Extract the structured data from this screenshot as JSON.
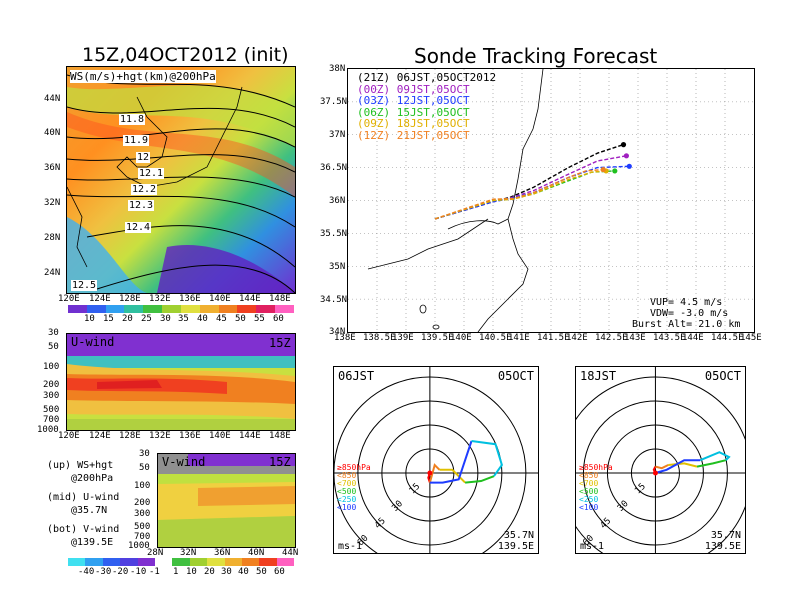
{
  "map_panel": {
    "title": "15Z,04OCT2012 (init)",
    "label": "WS(m/s)+hgt(km)@200hPa",
    "lat_ticks": [
      "44N",
      "40N",
      "36N",
      "32N",
      "28N",
      "24N"
    ],
    "lon_ticks": [
      "120E",
      "124E",
      "128E",
      "132E",
      "136E",
      "140E",
      "144E",
      "148E"
    ],
    "contour_labels": [
      "11.8",
      "11.9",
      "12",
      "12.1",
      "12.2",
      "12.3",
      "12.4",
      "12.5"
    ],
    "colorbar_labels": [
      "10",
      "15",
      "20",
      "25",
      "30",
      "35",
      "40",
      "45",
      "50",
      "55",
      "60"
    ]
  },
  "uwind_panel": {
    "title": "U-wind",
    "time": "15Z",
    "p_ticks": [
      "30",
      "50",
      "100",
      "200",
      "300",
      "500",
      "700",
      "1000"
    ],
    "lon_ticks": [
      "120E",
      "124E",
      "128E",
      "132E",
      "136E",
      "140E",
      "144E",
      "148E"
    ]
  },
  "vwind_panel": {
    "title": "V-wind",
    "time": "15Z",
    "p_ticks": [
      "30",
      "50",
      "100",
      "200",
      "300",
      "500",
      "700",
      "1000"
    ],
    "lat_ticks": [
      "28N",
      "32N",
      "36N",
      "40N",
      "44N"
    ]
  },
  "legend_text": {
    "up": [
      "(up) WS+hgt",
      "@200hPa"
    ],
    "mid": [
      "(mid) U-wind",
      "@35.7N"
    ],
    "bot": [
      "(bot) V-wind",
      "@139.5E"
    ]
  },
  "bottom_colorbar_labels": [
    "-40",
    "-30",
    "-20",
    "-10",
    "-1",
    "1",
    "10",
    "20",
    "30",
    "40",
    "50",
    "60"
  ],
  "track_panel": {
    "title": "Sonde Tracking Forecast",
    "lat_ticks": [
      "38N",
      "37.5N",
      "37N",
      "36.5N",
      "36N",
      "35.5N",
      "35N",
      "34.5N",
      "34N"
    ],
    "lon_ticks": [
      "138E",
      "138.5E",
      "139E",
      "139.5E",
      "140E",
      "140.5E",
      "141E",
      "141.5E",
      "142E",
      "142.5E",
      "143E",
      "143.5E",
      "144E",
      "144.5E",
      "145E"
    ],
    "legend": [
      {
        "text": "(21Z) 06JST,05OCT2012",
        "color": "#000000"
      },
      {
        "text": "(00Z) 09JST,05OCT",
        "color": "#a020c0"
      },
      {
        "text": "(03Z) 12JST,05OCT",
        "color": "#1e3cff"
      },
      {
        "text": "(06Z) 15JST,05OCT",
        "color": "#20c020"
      },
      {
        "text": "(09Z) 18JST,05OCT",
        "color": "#e0b000"
      },
      {
        "text": "(12Z) 21JST,05OCT",
        "color": "#f08020"
      }
    ],
    "info": [
      "VUP= 4.5 m/s",
      "VDW= -3.0 m/s",
      "Burst Alt= 21.0 km"
    ]
  },
  "chart_data": [
    {
      "type": "line",
      "title": "Sonde Tracking Forecast",
      "xlabel": "",
      "ylabel": "",
      "xlim": [
        138,
        145
      ],
      "ylim": [
        34,
        38
      ],
      "series": [
        {
          "name": "(21Z) 06JST,05OCT2012",
          "color": "#000000",
          "end": [
            142.75,
            36.85
          ],
          "points": [
            [
              139.5,
              35.72
            ],
            [
              140.5,
              35.98
            ],
            [
              140.8,
              36.05
            ],
            [
              141.2,
              36.2
            ],
            [
              141.8,
              36.5
            ],
            [
              142.3,
              36.72
            ],
            [
              142.75,
              36.85
            ]
          ]
        },
        {
          "name": "(00Z) 09JST,05OCT",
          "color": "#a020c0",
          "end": [
            142.8,
            36.68
          ],
          "points": [
            [
              139.5,
              35.72
            ],
            [
              140.5,
              35.98
            ],
            [
              140.8,
              36.04
            ],
            [
              141.2,
              36.15
            ],
            [
              141.8,
              36.4
            ],
            [
              142.3,
              36.6
            ],
            [
              142.8,
              36.68
            ]
          ]
        },
        {
          "name": "(03Z) 12JST,05OCT",
          "color": "#1e3cff",
          "end": [
            142.85,
            36.52
          ],
          "points": [
            [
              139.5,
              35.72
            ],
            [
              140.5,
              35.98
            ],
            [
              140.8,
              36.03
            ],
            [
              141.2,
              36.12
            ],
            [
              141.8,
              36.35
            ],
            [
              142.3,
              36.5
            ],
            [
              142.85,
              36.52
            ]
          ]
        },
        {
          "name": "(06Z) 15JST,05OCT",
          "color": "#20c020",
          "end": [
            142.6,
            36.45
          ],
          "points": [
            [
              139.5,
              35.72
            ],
            [
              140.5,
              36.0
            ],
            [
              140.8,
              36.02
            ],
            [
              141.2,
              36.1
            ],
            [
              141.8,
              36.3
            ],
            [
              142.2,
              36.43
            ],
            [
              142.6,
              36.45
            ]
          ]
        },
        {
          "name": "(09Z) 18JST,05OCT",
          "color": "#e0b000",
          "end": [
            142.45,
            36.45
          ],
          "points": [
            [
              139.5,
              35.72
            ],
            [
              140.5,
              36.0
            ],
            [
              140.85,
              36.02
            ],
            [
              141.2,
              36.1
            ],
            [
              141.8,
              36.32
            ],
            [
              142.2,
              36.43
            ],
            [
              142.45,
              36.45
            ]
          ]
        },
        {
          "name": "(12Z) 21JST,05OCT",
          "color": "#f08020",
          "end": [
            142.4,
            36.47
          ],
          "points": [
            [
              139.5,
              35.72
            ],
            [
              140.5,
              36.02
            ],
            [
              140.85,
              36.03
            ],
            [
              141.2,
              36.12
            ],
            [
              141.8,
              36.35
            ],
            [
              142.1,
              36.45
            ],
            [
              142.4,
              36.47
            ]
          ]
        }
      ]
    },
    {
      "type": "line",
      "title": "06JST 05OCT hodograph",
      "header_left": "06JST",
      "header_right": "05OCT",
      "ring_labels": [
        "15",
        "30",
        "45",
        "60"
      ],
      "footer_left": "ms-1",
      "footer_right": [
        "35.7N",
        "139.5E"
      ],
      "layer_legend": [
        {
          "text": "≥850hPa",
          "color": "#ff0000"
        },
        {
          "text": "<850",
          "color": "#f08020"
        },
        {
          "text": "<700",
          "color": "#e0c000"
        },
        {
          "text": "<500",
          "color": "#20c020"
        },
        {
          "text": "<250",
          "color": "#00c0e0"
        },
        {
          "text": "<100",
          "color": "#1e3cff"
        }
      ],
      "series": [
        {
          "color": "#ff0000",
          "points": [
            [
              0,
              0
            ],
            [
              -1,
              -3
            ],
            [
              0,
              -6
            ]
          ]
        },
        {
          "color": "#f08020",
          "points": [
            [
              0,
              -6
            ],
            [
              3,
              5
            ],
            [
              6,
              2
            ]
          ]
        },
        {
          "color": "#e0c000",
          "points": [
            [
              6,
              2
            ],
            [
              14,
              2
            ],
            [
              22,
              -6
            ]
          ]
        },
        {
          "color": "#20c020",
          "points": [
            [
              22,
              -6
            ],
            [
              32,
              -5
            ],
            [
              40,
              -2
            ]
          ]
        },
        {
          "color": "#1e3cff",
          "points": [
            [
              0,
              -6
            ],
            [
              8,
              -6
            ],
            [
              18,
              -4
            ],
            [
              26,
              20
            ]
          ]
        },
        {
          "color": "#00c0e0",
          "points": [
            [
              26,
              20
            ],
            [
              41,
              18
            ],
            [
              45,
              5
            ],
            [
              40,
              -2
            ]
          ]
        }
      ]
    },
    {
      "type": "line",
      "title": "18JST 05OCT hodograph",
      "header_left": "18JST",
      "header_right": "05OCT",
      "ring_labels": [
        "15",
        "30",
        "45",
        "60"
      ],
      "footer_left": "ms-1",
      "footer_right": [
        "35.7N",
        "139.5E"
      ],
      "layer_legend": [
        {
          "text": "≥850hPa",
          "color": "#ff0000"
        },
        {
          "text": "<850",
          "color": "#f08020"
        },
        {
          "text": "<700",
          "color": "#e0c000"
        },
        {
          "text": "<500",
          "color": "#20c020"
        },
        {
          "text": "<250",
          "color": "#00c0e0"
        },
        {
          "text": "<100",
          "color": "#1e3cff"
        }
      ],
      "series": [
        {
          "color": "#ff0000",
          "points": [
            [
              0,
              0
            ],
            [
              -1,
              2
            ],
            [
              0,
              4
            ]
          ]
        },
        {
          "color": "#f08020",
          "points": [
            [
              0,
              4
            ],
            [
              4,
              3
            ],
            [
              8,
              5
            ]
          ]
        },
        {
          "color": "#e0c000",
          "points": [
            [
              8,
              5
            ],
            [
              18,
              6
            ],
            [
              26,
              4
            ]
          ]
        },
        {
          "color": "#20c020",
          "points": [
            [
              26,
              4
            ],
            [
              36,
              6
            ],
            [
              44,
              8
            ]
          ]
        },
        {
          "color": "#1e3cff",
          "points": [
            [
              0,
              0
            ],
            [
              7,
              2
            ],
            [
              18,
              8
            ],
            [
              28,
              8
            ]
          ]
        },
        {
          "color": "#00c0e0",
          "points": [
            [
              28,
              8
            ],
            [
              40,
              13
            ],
            [
              46,
              10
            ],
            [
              44,
              8
            ]
          ]
        }
      ]
    }
  ]
}
